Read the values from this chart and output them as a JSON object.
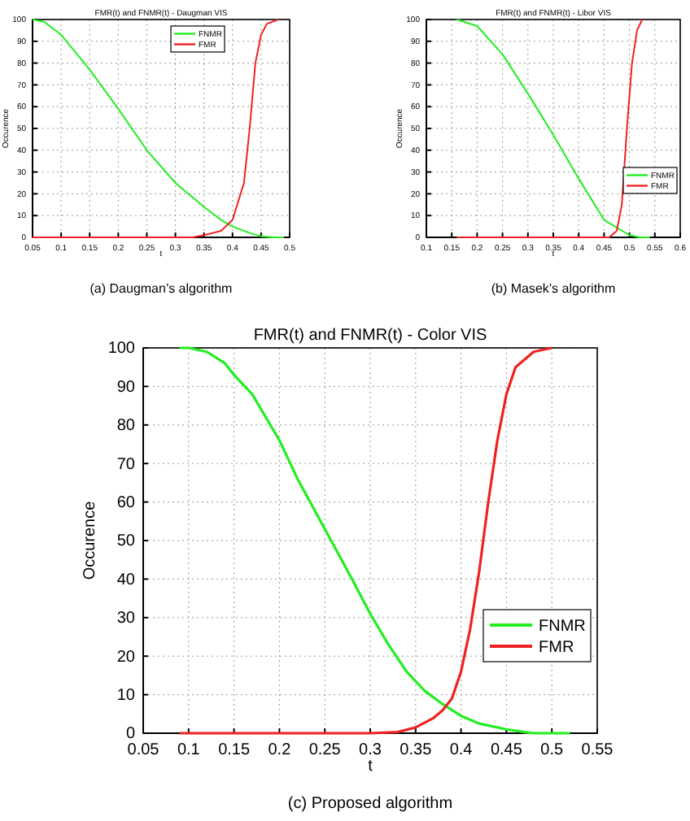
{
  "chart_data": [
    {
      "type": "line",
      "title": "FMR(t) and FNMR(t) - Daugman VIS",
      "xlabel": "t",
      "ylabel": "Occurence",
      "annotations": [
        "(a) Daugman’s algorithm"
      ],
      "xlim": [
        0.05,
        0.5
      ],
      "xticks": [
        0.05,
        0.1,
        0.15,
        0.2,
        0.25,
        0.3,
        0.35,
        0.4,
        0.45,
        0.5
      ],
      "ylim": [
        0,
        100
      ],
      "yticks": [
        0,
        10,
        20,
        30,
        40,
        50,
        60,
        70,
        80,
        90,
        100
      ],
      "grid": true,
      "legend": "top right",
      "line_style": "solid",
      "series": [
        {
          "name": "FNMR",
          "color": "#22ee22",
          "x": [
            0.05,
            0.07,
            0.1,
            0.15,
            0.2,
            0.25,
            0.3,
            0.35,
            0.38,
            0.4,
            0.43,
            0.45,
            0.47,
            0.49
          ],
          "values": [
            100,
            99,
            93,
            77,
            59,
            40,
            25,
            14,
            8,
            5,
            2,
            0.5,
            0,
            0
          ]
        },
        {
          "name": "FMR",
          "color": "#ee2222",
          "x": [
            0.05,
            0.33,
            0.35,
            0.38,
            0.4,
            0.42,
            0.43,
            0.44,
            0.45,
            0.46,
            0.48
          ],
          "values": [
            0,
            0,
            1,
            3,
            8,
            25,
            50,
            80,
            93,
            98,
            100
          ]
        }
      ]
    },
    {
      "type": "line",
      "title": "FMR(t) and FNMR(t) - Libor VIS",
      "xlabel": "t",
      "ylabel": "Occurence",
      "annotations": [
        "(b) Masek’s algorithm"
      ],
      "xlim": [
        0.1,
        0.6
      ],
      "xticks": [
        0.1,
        0.15,
        0.2,
        0.25,
        0.3,
        0.35,
        0.4,
        0.45,
        0.5,
        0.55,
        0.6
      ],
      "ylim": [
        0,
        100
      ],
      "yticks": [
        0,
        10,
        20,
        30,
        40,
        50,
        60,
        70,
        80,
        90,
        100
      ],
      "grid": true,
      "legend": "bottom right",
      "line_style": "solid",
      "series": [
        {
          "name": "FNMR",
          "color": "#22ee22",
          "x": [
            0.16,
            0.2,
            0.25,
            0.3,
            0.35,
            0.4,
            0.45,
            0.5,
            0.52,
            0.54
          ],
          "values": [
            100,
            97,
            84,
            66,
            47,
            27,
            8,
            1,
            0,
            0
          ]
        },
        {
          "name": "FMR",
          "color": "#ee2222",
          "x": [
            0.16,
            0.46,
            0.475,
            0.485,
            0.495,
            0.505,
            0.515,
            0.525
          ],
          "values": [
            0,
            0,
            3,
            15,
            50,
            80,
            95,
            100
          ]
        }
      ]
    },
    {
      "type": "line",
      "title": "FMR(t) and FNMR(t) - Color VIS",
      "xlabel": "t",
      "ylabel": "Occurence",
      "annotations": [
        "(c) Proposed algorithm"
      ],
      "xlim": [
        0.05,
        0.55
      ],
      "xticks": [
        0.05,
        0.1,
        0.15,
        0.2,
        0.25,
        0.3,
        0.35,
        0.4,
        0.45,
        0.5,
        0.55
      ],
      "ylim": [
        0,
        100
      ],
      "yticks": [
        0,
        10,
        20,
        30,
        40,
        50,
        60,
        70,
        80,
        90,
        100
      ],
      "grid": true,
      "legend": "bottom right",
      "line_style": "solid",
      "series": [
        {
          "name": "FNMR",
          "color": "#22ee22",
          "x": [
            0.09,
            0.1,
            0.12,
            0.14,
            0.15,
            0.17,
            0.2,
            0.22,
            0.25,
            0.28,
            0.3,
            0.32,
            0.34,
            0.36,
            0.38,
            0.4,
            0.42,
            0.45,
            0.47,
            0.48,
            0.52
          ],
          "values": [
            100,
            100,
            99,
            96,
            93,
            88,
            76,
            66,
            53,
            40,
            31,
            23,
            16,
            11,
            7.5,
            4.5,
            2.5,
            1,
            0.3,
            0,
            0
          ]
        },
        {
          "name": "FMR",
          "color": "#ee2222",
          "x": [
            0.09,
            0.3,
            0.33,
            0.35,
            0.37,
            0.38,
            0.39,
            0.4,
            0.41,
            0.42,
            0.43,
            0.44,
            0.45,
            0.46,
            0.48,
            0.5
          ],
          "values": [
            0,
            0,
            0.3,
            1.5,
            4,
            6,
            9,
            16,
            27,
            42,
            60,
            76,
            88,
            95,
            99,
            100
          ]
        }
      ]
    }
  ]
}
